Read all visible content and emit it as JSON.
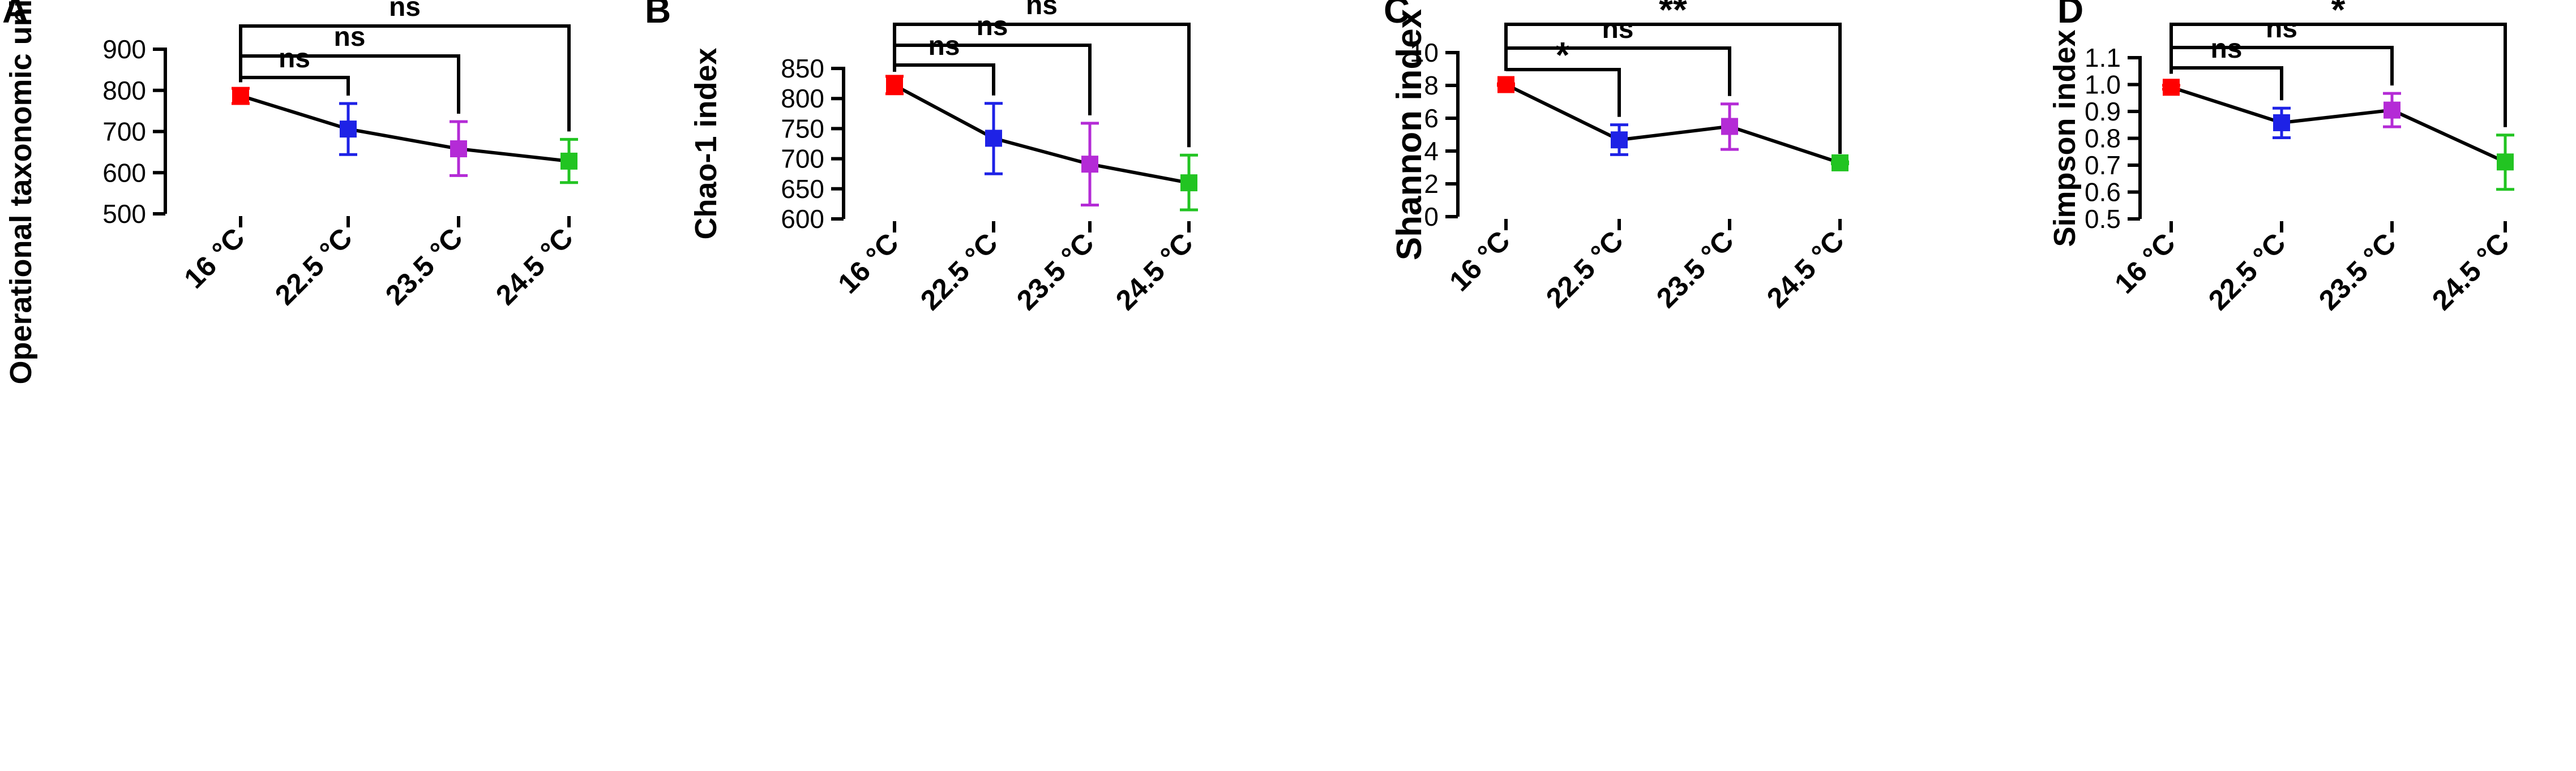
{
  "chart_data": [
    {
      "panel": "A",
      "type": "line",
      "categories": [
        "16 °C",
        "22.5 °C",
        "23.5 °C",
        "24.5 °C"
      ],
      "values": [
        787,
        706,
        658,
        628
      ],
      "error": [
        [
          768,
          805
        ],
        [
          644,
          768
        ],
        [
          593,
          724
        ],
        [
          576,
          681
        ]
      ],
      "colors": [
        "#ff0000",
        "#1e22e6",
        "#b42bd6",
        "#22c422"
      ],
      "ylabel": "Operational taxonomic unit (OTUs)",
      "ylim": [
        500,
        900
      ],
      "yticks": [
        "500",
        "600",
        "700",
        "800",
        "900"
      ],
      "brackets": [
        {
          "from": 0,
          "to": 1,
          "label": "ns"
        },
        {
          "from": 0,
          "to": 2,
          "label": "ns"
        },
        {
          "from": 0,
          "to": 3,
          "label": "ns"
        }
      ]
    },
    {
      "panel": "B",
      "type": "line",
      "categories": [
        "16 °C",
        "22.5 °C",
        "23.5 °C",
        "24.5 °C"
      ],
      "values": [
        822,
        734,
        691,
        660
      ],
      "error": [
        [
          808,
          837
        ],
        [
          675,
          792
        ],
        [
          623,
          759
        ],
        [
          615,
          706
        ]
      ],
      "colors": [
        "#ff0000",
        "#1e22e6",
        "#b42bd6",
        "#22c422"
      ],
      "ylabel": "Chao-1 index",
      "ylim": [
        600,
        850
      ],
      "yticks": [
        "600",
        "650",
        "700",
        "750",
        "800",
        "850"
      ],
      "brackets": [
        {
          "from": 0,
          "to": 1,
          "label": "ns"
        },
        {
          "from": 0,
          "to": 2,
          "label": "ns"
        },
        {
          "from": 0,
          "to": 3,
          "label": "ns"
        }
      ]
    },
    {
      "panel": "C",
      "type": "line",
      "categories": [
        "16 °C",
        "22.5 °C",
        "23.5 °C",
        "24.5 °C"
      ],
      "values": [
        8.05,
        4.68,
        5.5,
        3.28
      ],
      "error": [
        [
          8.0,
          8.1
        ],
        [
          3.78,
          5.6
        ],
        [
          4.1,
          6.87
        ],
        [
          3.22,
          3.34
        ]
      ],
      "colors": [
        "#ff0000",
        "#1e22e6",
        "#b42bd6",
        "#22c422"
      ],
      "ylabel": "Shannon index",
      "ylim": [
        0,
        10
      ],
      "yticks": [
        "0",
        "2",
        "4",
        "6",
        "8",
        "10"
      ],
      "brackets": [
        {
          "from": 0,
          "to": 1,
          "label": "*"
        },
        {
          "from": 0,
          "to": 2,
          "label": "ns"
        },
        {
          "from": 0,
          "to": 3,
          "label": "**"
        }
      ]
    },
    {
      "panel": "D",
      "type": "line",
      "categories": [
        "16 °C",
        "22.5 °C",
        "23.5 °C",
        "24.5 °C"
      ],
      "values": [
        0.99,
        0.858,
        0.905,
        0.712
      ],
      "error": [
        [
          0.983,
          0.997
        ],
        [
          0.802,
          0.912
        ],
        [
          0.843,
          0.967
        ],
        [
          0.61,
          0.812
        ]
      ],
      "colors": [
        "#ff0000",
        "#1e22e6",
        "#b42bd6",
        "#22c422"
      ],
      "ylabel": "Simpson index",
      "ylim": [
        0.5,
        1.1
      ],
      "yticks": [
        "0.5",
        "0.6",
        "0.7",
        "0.8",
        "0.9",
        "1.0",
        "1.1"
      ],
      "brackets": [
        {
          "from": 0,
          "to": 1,
          "label": "ns"
        },
        {
          "from": 0,
          "to": 2,
          "label": "ns"
        },
        {
          "from": 0,
          "to": 3,
          "label": "*"
        }
      ]
    }
  ]
}
